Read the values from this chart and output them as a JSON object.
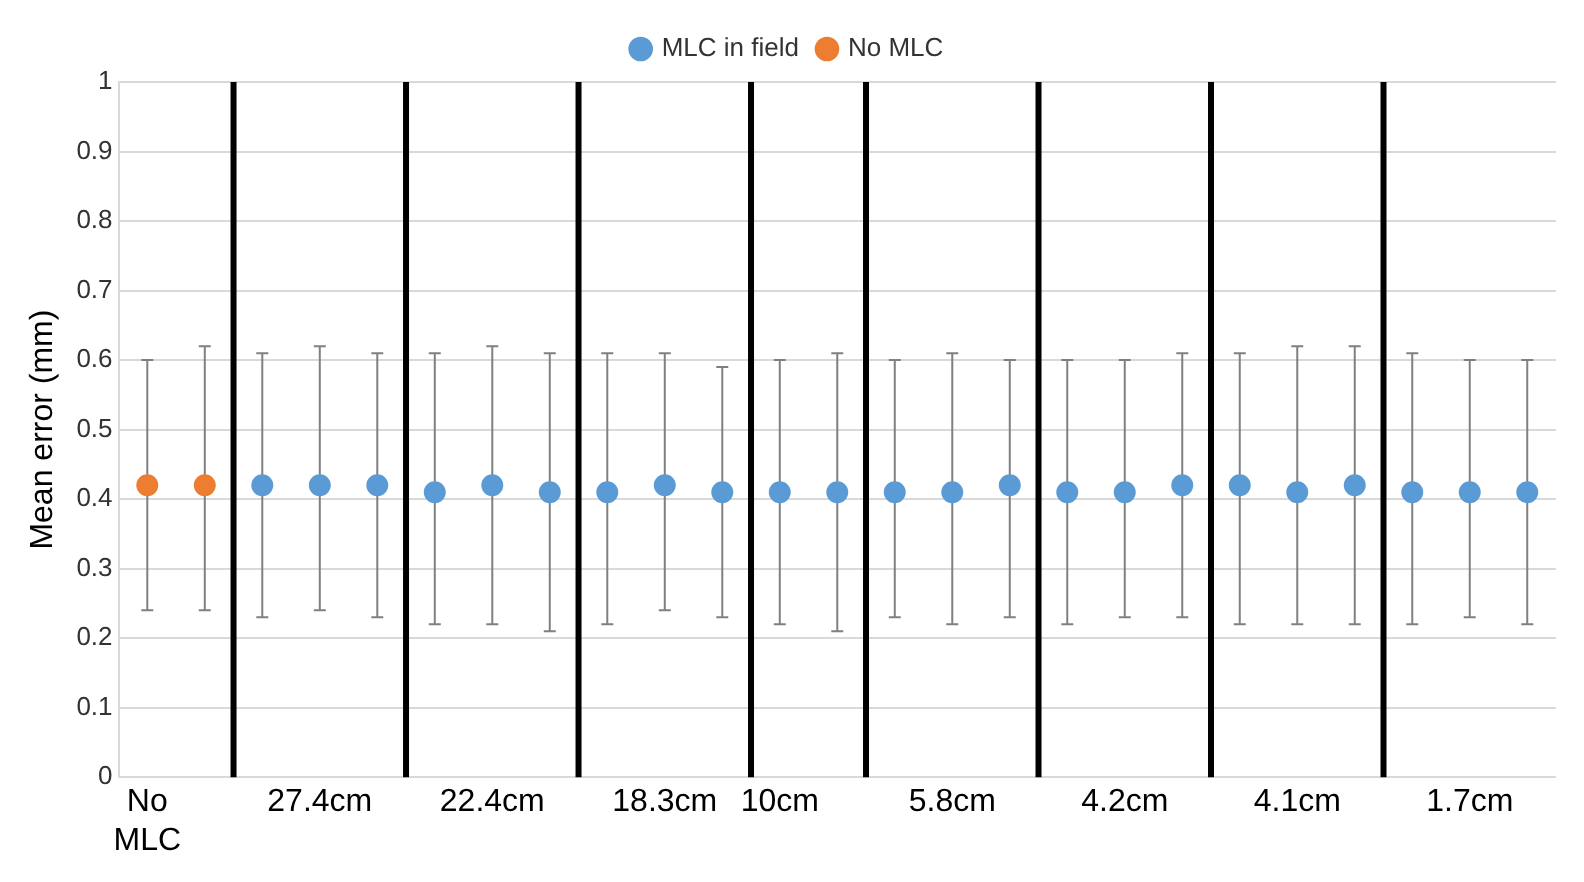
{
  "chart_data": {
    "type": "scatter",
    "ylabel": "Mean error (mm)",
    "ylim": [
      0,
      1
    ],
    "yticks": [
      0,
      0.1,
      0.2,
      0.3,
      0.4,
      0.5,
      0.6,
      0.7,
      0.8,
      0.9,
      1
    ],
    "categories": [
      "No MLC",
      null,
      null,
      "27.4cm",
      null,
      null,
      "22.4cm",
      null,
      null,
      "18.3cm",
      null,
      "10cm",
      null,
      null,
      "5.8cm",
      null,
      null,
      "4.2cm",
      null,
      null,
      "4.1cm",
      null,
      null,
      "1.7cm",
      null
    ],
    "series": [
      {
        "name": "MLC in field",
        "color": "#5b9bd5",
        "values": [
          null,
          null,
          0.42,
          0.42,
          0.42,
          0.41,
          0.42,
          0.41,
          0.41,
          0.42,
          0.41,
          0.41,
          0.41,
          0.41,
          0.41,
          0.42,
          0.41,
          0.41,
          0.42,
          0.42,
          0.41,
          0.42,
          0.41,
          0.41,
          0.41
        ],
        "errors": [
          null,
          null,
          [
            0.23,
            0.61
          ],
          [
            0.24,
            0.62
          ],
          [
            0.23,
            0.61
          ],
          [
            0.22,
            0.61
          ],
          [
            0.22,
            0.62
          ],
          [
            0.21,
            0.61
          ],
          [
            0.22,
            0.61
          ],
          [
            0.24,
            0.61
          ],
          [
            0.23,
            0.59
          ],
          [
            0.22,
            0.6
          ],
          [
            0.21,
            0.61
          ],
          [
            0.23,
            0.6
          ],
          [
            0.22,
            0.61
          ],
          [
            0.23,
            0.6
          ],
          [
            0.22,
            0.6
          ],
          [
            0.23,
            0.6
          ],
          [
            0.23,
            0.61
          ],
          [
            0.22,
            0.61
          ],
          [
            0.22,
            0.62
          ],
          [
            0.22,
            0.62
          ],
          [
            0.22,
            0.61
          ],
          [
            0.23,
            0.6
          ],
          [
            0.22,
            0.6
          ]
        ]
      },
      {
        "name": "No MLC",
        "color": "#ed7d31",
        "values": [
          0.42,
          0.42,
          null,
          null,
          null,
          null,
          null,
          null,
          null,
          null,
          null,
          null,
          null,
          null,
          null,
          null,
          null,
          null,
          null,
          null,
          null,
          null,
          null,
          null,
          null
        ],
        "errors": [
          [
            0.24,
            0.6
          ],
          [
            0.24,
            0.62
          ],
          null,
          null,
          null,
          null,
          null,
          null,
          null,
          null,
          null,
          null,
          null,
          null,
          null,
          null,
          null,
          null,
          null,
          null,
          null,
          null,
          null,
          null,
          null
        ]
      }
    ],
    "grid": "y",
    "legend": "top",
    "marker": "circle"
  }
}
